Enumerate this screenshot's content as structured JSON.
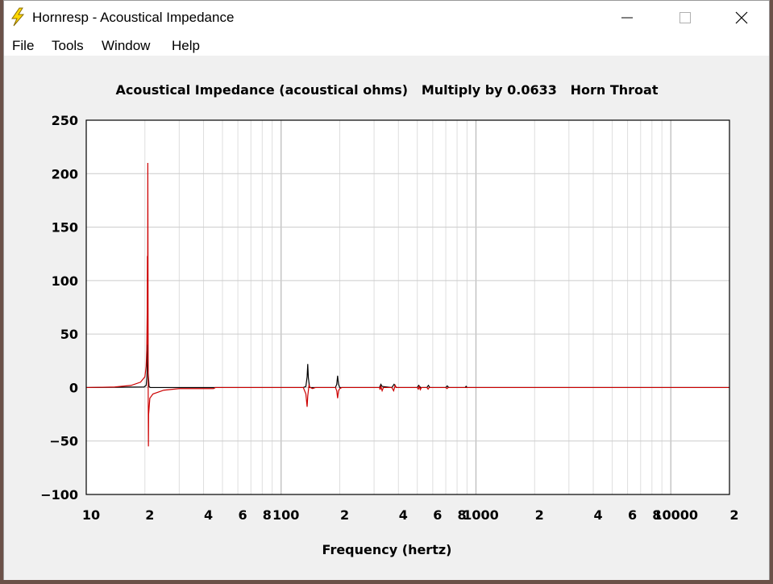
{
  "window": {
    "title": "Hornresp - Acoustical Impedance"
  },
  "menu": {
    "items": [
      "File",
      "Tools",
      "Window",
      "Help"
    ]
  },
  "colors": {
    "series_resistance": "#000000",
    "series_reactance": "#cc0000",
    "grid": "#cccccc",
    "background": "#ffffff"
  },
  "chart_data": {
    "type": "line",
    "title": "Acoustical Impedance (acoustical ohms)   Multiply by 0.0633   Horn Throat",
    "xlabel": "Frequency (hertz)",
    "ylabel": "",
    "xscale": "log",
    "xlim": [
      10,
      20000
    ],
    "ylim": [
      -100,
      250
    ],
    "yticks": [
      250,
      200,
      150,
      100,
      50,
      0,
      -50,
      -100
    ],
    "ytick_labels": [
      "250",
      "200",
      "150",
      "100",
      "50",
      "0",
      "−50",
      "−100"
    ],
    "xticks": [
      10,
      20,
      40,
      60,
      80,
      100,
      200,
      400,
      600,
      800,
      1000,
      2000,
      4000,
      6000,
      8000,
      10000,
      20000
    ],
    "xtick_labels": [
      "10",
      "2",
      "4",
      "6",
      "8",
      "100",
      "2",
      "4",
      "6",
      "8",
      "1000",
      "2",
      "4",
      "6",
      "8",
      "10000",
      "2"
    ],
    "grid": true,
    "series": [
      {
        "color": "#000000",
        "points": [
          [
            10,
            0
          ],
          [
            19.8,
            0.5
          ],
          [
            20.3,
            2
          ],
          [
            20.5,
            10
          ],
          [
            20.6,
            28
          ],
          [
            20.65,
            48
          ],
          [
            20.7,
            28
          ],
          [
            20.8,
            14
          ],
          [
            21.0,
            1
          ],
          [
            21.3,
            0
          ],
          [
            130,
            0
          ],
          [
            134,
            1
          ],
          [
            136,
            10
          ],
          [
            137,
            22
          ],
          [
            138,
            9
          ],
          [
            140,
            0
          ],
          [
            190,
            0
          ],
          [
            193,
            3
          ],
          [
            195,
            11
          ],
          [
            197,
            3
          ],
          [
            200,
            0
          ],
          [
            320,
            0
          ],
          [
            325,
            3
          ],
          [
            330,
            1
          ],
          [
            370,
            0
          ],
          [
            380,
            3
          ],
          [
            390,
            0
          ],
          [
            500,
            0
          ],
          [
            508,
            2
          ],
          [
            520,
            0
          ],
          [
            560,
            0
          ],
          [
            570,
            2
          ],
          [
            580,
            0
          ],
          [
            700,
            0
          ],
          [
            712,
            1.5
          ],
          [
            725,
            0
          ],
          [
            880,
            0
          ],
          [
            890,
            1.2
          ],
          [
            900,
            0
          ],
          [
            20000,
            0
          ]
        ]
      },
      {
        "color": "#cc0000",
        "points": [
          [
            10,
            0
          ],
          [
            14,
            0.5
          ],
          [
            17,
            2
          ],
          [
            19,
            5
          ],
          [
            20,
            10
          ],
          [
            20.3,
            20
          ],
          [
            20.45,
            35
          ],
          [
            20.55,
            70
          ],
          [
            20.6,
            123
          ],
          [
            20.65,
            40
          ],
          [
            20.7,
            210
          ],
          [
            20.75,
            105
          ],
          [
            20.8,
            -10
          ],
          [
            20.85,
            -55
          ],
          [
            20.9,
            -25
          ],
          [
            21.2,
            -10
          ],
          [
            22,
            -6
          ],
          [
            25,
            -2.5
          ],
          [
            30,
            -1
          ],
          [
            45,
            -1
          ],
          [
            46,
            0
          ],
          [
            100,
            0
          ],
          [
            130,
            0
          ],
          [
            132,
            -3
          ],
          [
            134,
            -6
          ],
          [
            136,
            -18
          ],
          [
            137,
            -8
          ],
          [
            139,
            2
          ],
          [
            141,
            0
          ],
          [
            145,
            -1
          ],
          [
            150,
            0
          ],
          [
            190,
            0
          ],
          [
            193,
            -3
          ],
          [
            195,
            -10
          ],
          [
            197,
            -3
          ],
          [
            200,
            -1
          ],
          [
            205,
            0
          ],
          [
            320,
            0
          ],
          [
            322,
            -2
          ],
          [
            325,
            1
          ],
          [
            330,
            -3
          ],
          [
            335,
            0
          ],
          [
            370,
            0
          ],
          [
            378,
            -3
          ],
          [
            385,
            2
          ],
          [
            390,
            0
          ],
          [
            500,
            0
          ],
          [
            506,
            -1.5
          ],
          [
            512,
            1
          ],
          [
            518,
            -2
          ],
          [
            525,
            0
          ],
          [
            560,
            0
          ],
          [
            568,
            -1.5
          ],
          [
            575,
            0
          ],
          [
            700,
            0
          ],
          [
            710,
            -1
          ],
          [
            720,
            0
          ],
          [
            20000,
            0
          ]
        ]
      }
    ]
  }
}
